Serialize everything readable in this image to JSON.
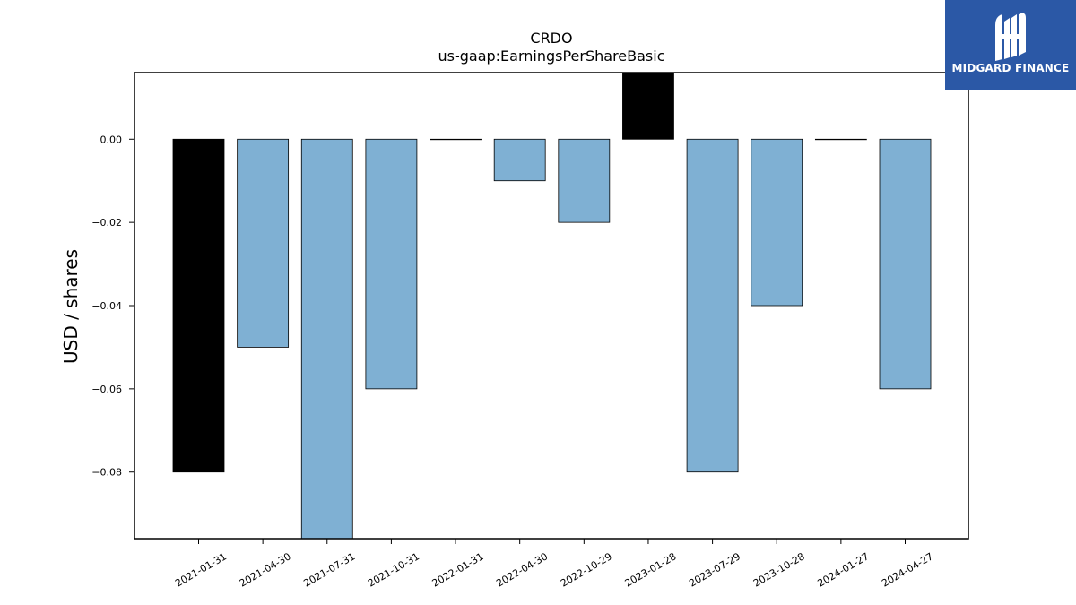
{
  "chart_data": {
    "type": "bar",
    "title": "CRDO",
    "subtitle": "us-gaap:EarningsPerShareBasic",
    "xlabel": "",
    "ylabel": "USD / shares",
    "categories": [
      "2021-01-31",
      "2021-04-30",
      "2021-07-31",
      "2021-10-31",
      "2022-01-31",
      "2022-04-30",
      "2022-10-29",
      "2023-01-28",
      "2023-07-29",
      "2023-10-28",
      "2024-01-27",
      "2024-04-27"
    ],
    "values": [
      -0.08,
      -0.05,
      -0.1,
      -0.06,
      0.0,
      -0.01,
      -0.02,
      0.02,
      -0.08,
      -0.04,
      0.0,
      -0.06
    ],
    "highlight": [
      true,
      false,
      false,
      false,
      false,
      false,
      false,
      true,
      false,
      false,
      false,
      false
    ],
    "ylim": [
      -0.096,
      0.016
    ],
    "yticks": [
      0.0,
      -0.02,
      -0.04,
      -0.06,
      -0.08
    ],
    "ytick_labels": [
      "0.00",
      "−0.02",
      "−0.04",
      "−0.06",
      "−0.08"
    ],
    "grid": false,
    "colors": {
      "bar": "#7fb0d3",
      "highlight": "#000000",
      "edge": "#000000"
    }
  },
  "logo": {
    "text": "MIDGARD FINANCE"
  }
}
